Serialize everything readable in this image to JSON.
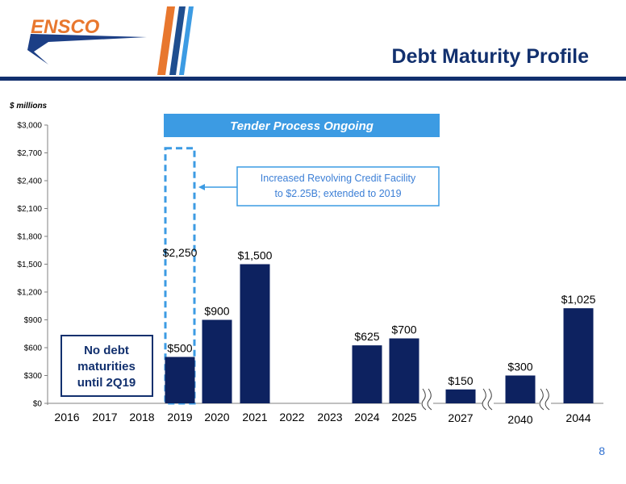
{
  "header": {
    "title": "Debt Maturity Profile",
    "logo_text": "ENSCO"
  },
  "page_number": "8",
  "annotations": {
    "banner": "Tender Process Ongoing",
    "facility_line1": "Increased Revolving Credit Facility",
    "facility_line2": "to $2.25B; extended to 2019",
    "facility_value": "$2,250",
    "no_debt_line1": "No debt",
    "no_debt_line2": "maturities",
    "no_debt_line3": "until 2Q19"
  },
  "colors": {
    "bar": "#0d2260",
    "accent_blue": "#3c9be3",
    "navy": "#12306e",
    "logo_orange": "#e8772e"
  },
  "chart_data": {
    "type": "bar",
    "title": "",
    "ylabel": "$ millions",
    "xlabel": "",
    "ylim": [
      0,
      3000
    ],
    "yticks": [
      "$0",
      "$300",
      "$600",
      "$900",
      "$1,200",
      "$1,500",
      "$1,800",
      "$2,100",
      "$2,400",
      "$2,700",
      "$3,000"
    ],
    "categories": [
      "2016",
      "2017",
      "2018",
      "2019",
      "2020",
      "2021",
      "2022",
      "2023",
      "2024",
      "2025",
      "2027",
      "2040",
      "2044"
    ],
    "values": [
      0,
      0,
      0,
      500,
      900,
      1500,
      0,
      0,
      625,
      700,
      150,
      300,
      1025
    ],
    "data_labels": [
      "",
      "",
      "",
      "$500",
      "$900",
      "$1,500",
      "",
      "",
      "$625",
      "$700",
      "$150",
      "$300",
      "$1,025"
    ],
    "extra_dashed_bar": {
      "category": "2019",
      "value": 2750
    },
    "axis_breaks_after": [
      "2025",
      "2027",
      "2040"
    ],
    "grid": false,
    "legend": "none"
  }
}
